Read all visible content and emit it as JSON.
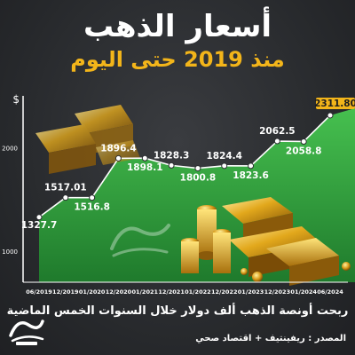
{
  "header": {
    "title": "أسعار الذهب",
    "subtitle": "منذ 2019 حتى اليوم"
  },
  "footer": {
    "caption": "ربحت أونصة الذهب ألف دولار خلال السنوات الخمس الماضية",
    "source": "المصدر : ريفينتيف + اقتصاد صحي"
  },
  "colors": {
    "accent_gold": "#f3b51a",
    "line": "#ffffff",
    "area_green": "#3fb24a",
    "background": "#2b2d30"
  },
  "chart_data": {
    "type": "line",
    "x": [
      "06/2019",
      "12/2019",
      "01/2020",
      "12/2020",
      "01/2021",
      "12/2021",
      "01/2022",
      "12/2022",
      "01/2023",
      "12/2023",
      "01/2024",
      "06/2024"
    ],
    "y_label_texts": [
      "1327.7",
      "1517.01",
      "1516.8",
      "1896.4",
      "1898.1",
      "1828.3",
      "1800.8",
      "1824.4",
      "1823.6",
      "2062.5",
      "2058.8",
      "2311.80"
    ],
    "values": [
      1327.7,
      1517.01,
      1516.8,
      1896.4,
      1898.1,
      1828.3,
      1800.8,
      1824.4,
      1823.6,
      2062.5,
      2058.8,
      2311.8
    ],
    "y_axis_unit": "$",
    "yticks": [
      1000,
      2000
    ],
    "ylim": [
      700,
      2500
    ],
    "grid": false,
    "legend": "none"
  }
}
